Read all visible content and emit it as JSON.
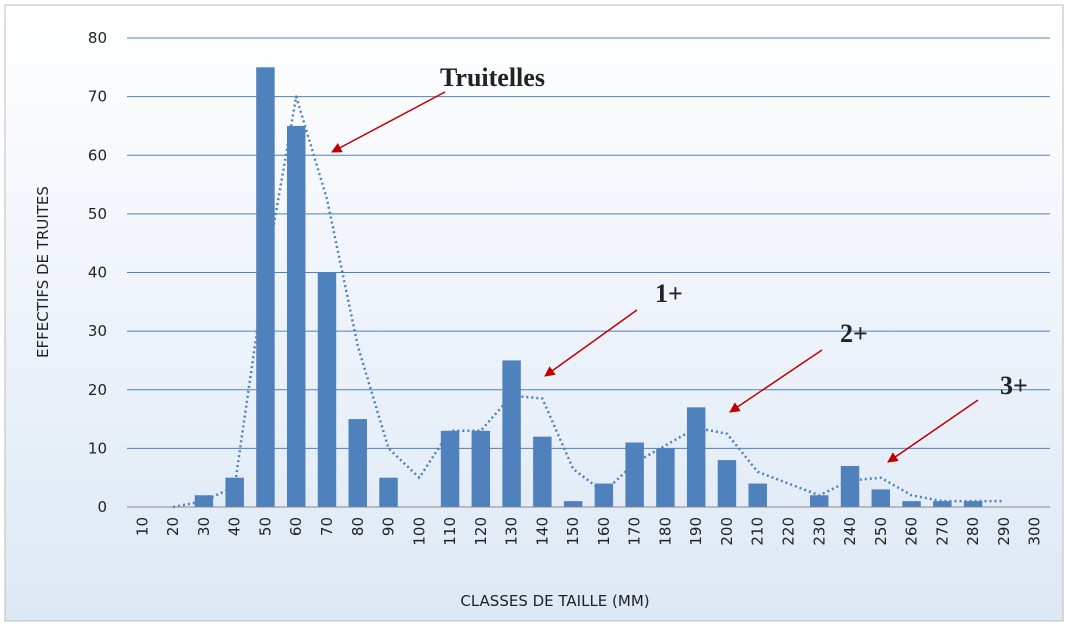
{
  "chart_data": {
    "type": "bar",
    "x_label": "CLASSES DE TAILLE (MM)",
    "y_label": "EFFECTIFS DE TRUITES",
    "categories": [
      "10",
      "20",
      "30",
      "40",
      "50",
      "60",
      "70",
      "80",
      "90",
      "100",
      "110",
      "120",
      "130",
      "140",
      "150",
      "160",
      "170",
      "180",
      "190",
      "200",
      "210",
      "220",
      "230",
      "240",
      "250",
      "260",
      "270",
      "280",
      "290",
      "300"
    ],
    "series": [
      {
        "type": "bar",
        "color": "#4f81bd",
        "values": [
          0,
          0,
          2,
          5,
          75,
          65,
          40,
          15,
          5,
          0,
          13,
          13,
          25,
          12,
          1,
          4,
          11,
          10,
          17,
          8,
          4,
          0,
          2,
          7,
          3,
          1,
          1,
          1,
          0,
          0
        ]
      },
      {
        "type": "line",
        "color": "#4f81bd",
        "values": [
          null,
          0,
          1,
          3.5,
          40,
          70,
          52.5,
          27.5,
          10,
          5,
          13,
          13,
          19,
          18.5,
          6.5,
          2.5,
          7.5,
          10.5,
          13.5,
          12.5,
          6,
          4,
          2,
          4.5,
          5,
          2,
          1,
          1,
          1,
          null
        ]
      }
    ],
    "ylim": [
      0,
      80
    ],
    "yticks": [
      0,
      10,
      20,
      30,
      40,
      50,
      60,
      70,
      80
    ],
    "grid": true,
    "annotations": [
      {
        "text": "Truitelles",
        "color": "#c00000"
      },
      {
        "text": "1+",
        "color": "#c55a11"
      },
      {
        "text": "2+",
        "color": "#c55a11"
      },
      {
        "text": "3+",
        "color": "#c55a11"
      }
    ]
  }
}
